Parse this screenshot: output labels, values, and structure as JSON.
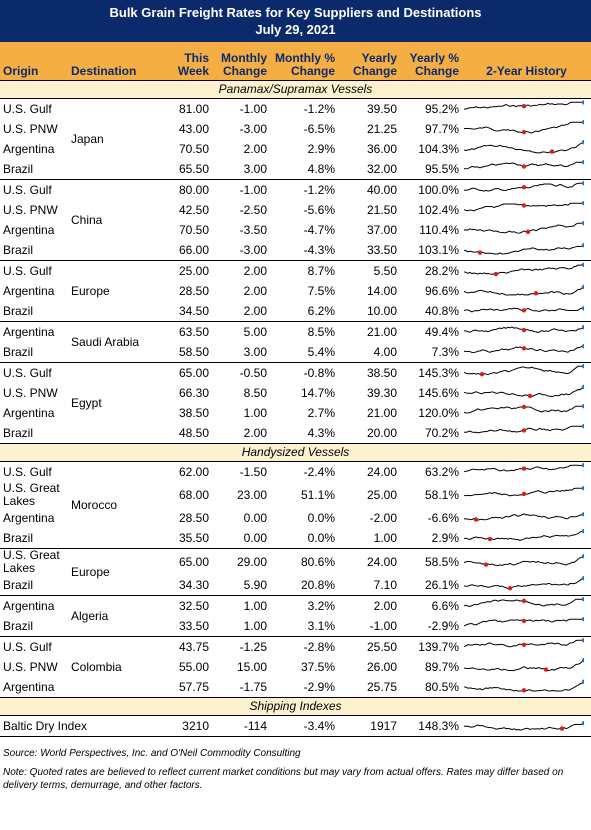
{
  "title": "Bulk Grain Freight Rates for Key Suppliers and Destinations",
  "date": "July 29, 2021",
  "columns": [
    "Origin",
    "Destination",
    "This Week",
    "Monthly Change",
    "Monthly % Change",
    "Yearly Change",
    "Yearly % Change",
    "2-Year History"
  ],
  "sections": [
    {
      "title": "Panamax/Supramax Vessels",
      "groups": [
        {
          "destination": "Japan",
          "rows": [
            [
              "U.S. Gulf",
              "81.00",
              "-1.00",
              "-1.2%",
              "39.50",
              "95.2%"
            ],
            [
              "U.S. PNW",
              "43.00",
              "-3.00",
              "-6.5%",
              "21.25",
              "97.7%"
            ],
            [
              "Argentina",
              "70.50",
              "2.00",
              "2.9%",
              "36.00",
              "104.3%"
            ],
            [
              "Brazil",
              "65.50",
              "3.00",
              "4.8%",
              "32.00",
              "95.5%"
            ]
          ]
        },
        {
          "destination": "China",
          "rows": [
            [
              "U.S. Gulf",
              "80.00",
              "-1.00",
              "-1.2%",
              "40.00",
              "100.0%"
            ],
            [
              "U.S. PNW",
              "42.50",
              "-2.50",
              "-5.6%",
              "21.50",
              "102.4%"
            ],
            [
              "Argentina",
              "70.50",
              "-3.50",
              "-4.7%",
              "37.00",
              "110.4%"
            ],
            [
              "Brazil",
              "66.00",
              "-3.00",
              "-4.3%",
              "33.50",
              "103.1%"
            ]
          ]
        },
        {
          "destination": "Europe",
          "rows": [
            [
              "U.S. Gulf",
              "25.00",
              "2.00",
              "8.7%",
              "5.50",
              "28.2%"
            ],
            [
              "Argentina",
              "28.50",
              "2.00",
              "7.5%",
              "14.00",
              "96.6%"
            ],
            [
              "Brazil",
              "34.50",
              "2.00",
              "6.2%",
              "10.00",
              "40.8%"
            ]
          ]
        },
        {
          "destination": "Saudi Arabia",
          "rows": [
            [
              "Argentina",
              "63.50",
              "5.00",
              "8.5%",
              "21.00",
              "49.4%"
            ],
            [
              "Brazil",
              "58.50",
              "3.00",
              "5.4%",
              "4.00",
              "7.3%"
            ]
          ]
        },
        {
          "destination": "Egypt",
          "rows": [
            [
              "U.S. Gulf",
              "65.00",
              "-0.50",
              "-0.8%",
              "38.50",
              "145.3%"
            ],
            [
              "U.S. PNW",
              "66.30",
              "8.50",
              "14.7%",
              "39.30",
              "145.6%"
            ],
            [
              "Argentina",
              "38.50",
              "1.00",
              "2.7%",
              "21.00",
              "120.0%"
            ],
            [
              "Brazil",
              "48.50",
              "2.00",
              "4.3%",
              "20.00",
              "70.2%"
            ]
          ]
        }
      ]
    },
    {
      "title": "Handysized Vessels",
      "groups": [
        {
          "destination": "Morocco",
          "rows": [
            [
              "U.S. Gulf",
              "62.00",
              "-1.50",
              "-2.4%",
              "24.00",
              "63.2%"
            ],
            [
              "U.S. Great Lakes",
              "68.00",
              "23.00",
              "51.1%",
              "25.00",
              "58.1%"
            ],
            [
              "Argentina",
              "28.50",
              "0.00",
              "0.0%",
              "-2.00",
              "-6.6%"
            ],
            [
              "Brazil",
              "35.50",
              "0.00",
              "0.0%",
              "1.00",
              "2.9%"
            ]
          ]
        },
        {
          "destination": "Europe",
          "rows": [
            [
              "U.S. Great Lakes",
              "65.00",
              "29.00",
              "80.6%",
              "24.00",
              "58.5%"
            ],
            [
              "Brazil",
              "34.30",
              "5.90",
              "20.8%",
              "7.10",
              "26.1%"
            ]
          ]
        },
        {
          "destination": "Algeria",
          "rows": [
            [
              "Argentina",
              "32.50",
              "1.00",
              "3.2%",
              "2.00",
              "6.6%"
            ],
            [
              "Brazil",
              "33.50",
              "1.00",
              "3.1%",
              "-1.00",
              "-2.9%"
            ]
          ]
        },
        {
          "destination": "Colombia",
          "rows": [
            [
              "U.S. Gulf",
              "43.75",
              "-1.25",
              "-2.8%",
              "25.50",
              "139.7%"
            ],
            [
              "U.S. PNW",
              "55.00",
              "15.00",
              "37.5%",
              "26.00",
              "89.7%"
            ],
            [
              "Argentina",
              "57.75",
              "-1.75",
              "-2.9%",
              "25.75",
              "80.5%"
            ]
          ]
        }
      ]
    },
    {
      "title": "Shipping Indexes",
      "groups": [
        {
          "destination": "",
          "rows": [
            [
              "Baltic Dry Index",
              "3210",
              "-114",
              "-3.4%",
              "1917",
              "148.3%"
            ]
          ]
        }
      ]
    }
  ],
  "source": "Source: World Perspectives, Inc. and O'Neil Commodity Consulting",
  "note": "Note: Quoted rates are believed to reflect current market conditions but may vary from actual offers. Rates may differ based on delivery terms, demurrage, and other factors."
}
